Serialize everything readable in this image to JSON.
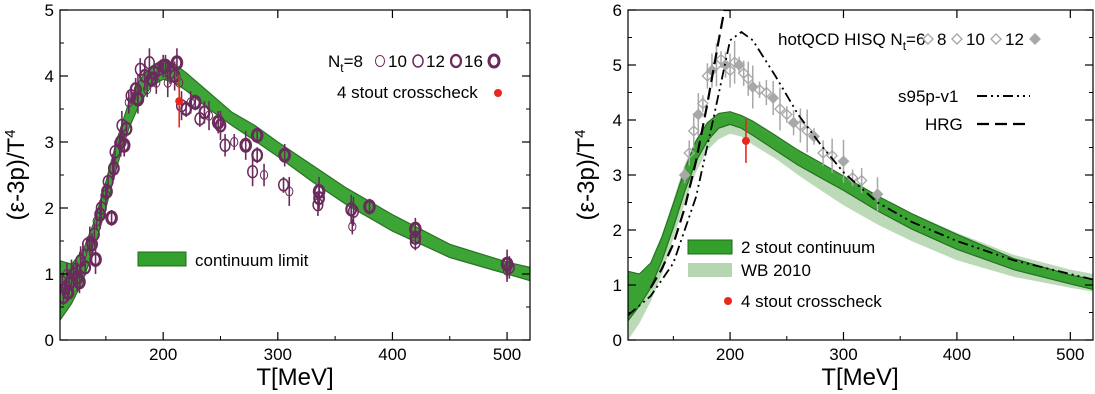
{
  "colors": {
    "band": "#33a02c",
    "band_dark": "#1f6b1a",
    "wb_band": "#b5d6b0",
    "lattice": "#6b2a5c",
    "crosscheck": "#e8281c",
    "hotqcd": "#a8a8a8"
  },
  "chart_data": [
    {
      "type": "line",
      "xlabel": "T[MeV]",
      "ylabel": "(ε-3p)/T",
      "ylabel_sup": "4",
      "xlim": [
        110,
        520
      ],
      "ylim": [
        0,
        5
      ],
      "xticks": [
        200,
        300,
        400,
        500
      ],
      "yticks": [
        0,
        1,
        2,
        3,
        4,
        5
      ],
      "legend_prefix": "N",
      "legend_prefix_sub": "t",
      "legend_prefix_suffix": "=8",
      "legend_labels": [
        "10",
        "12",
        "16"
      ],
      "series": [
        {
          "name": "continuum limit",
          "kind": "band",
          "x": [
            110,
            120,
            130,
            140,
            150,
            160,
            170,
            180,
            190,
            200,
            210,
            220,
            240,
            260,
            280,
            300,
            330,
            360,
            400,
            450,
            500,
            520
          ],
          "lower": [
            0.3,
            0.55,
            0.9,
            1.4,
            2.0,
            2.65,
            3.2,
            3.6,
            3.85,
            3.95,
            3.9,
            3.78,
            3.5,
            3.25,
            3.02,
            2.78,
            2.4,
            2.05,
            1.65,
            1.25,
            1.0,
            0.9
          ],
          "upper": [
            1.2,
            1.15,
            1.35,
            1.8,
            2.4,
            3.05,
            3.6,
            3.95,
            4.15,
            4.25,
            4.18,
            4.05,
            3.75,
            3.45,
            3.25,
            3.0,
            2.65,
            2.3,
            1.9,
            1.45,
            1.18,
            1.1
          ]
        },
        {
          "name": "8",
          "kind": "points",
          "style": "thin",
          "points": [
            [
              112,
              0.9
            ],
            [
              116,
              1.0
            ],
            [
              120,
              1.0
            ],
            [
              124,
              1.1
            ],
            [
              130,
              1.3
            ],
            [
              136,
              1.5
            ],
            [
              142,
              1.8
            ],
            [
              150,
              2.2
            ],
            [
              156,
              2.6
            ],
            [
              162,
              3.0
            ],
            [
              170,
              3.6
            ],
            [
              178,
              3.8
            ],
            [
              186,
              3.8
            ],
            [
              194,
              3.9
            ],
            [
              204,
              3.9
            ],
            [
              214,
              3.9
            ],
            [
              224,
              3.6
            ],
            [
              240,
              3.4
            ],
            [
              262,
              3.0
            ],
            [
              288,
              2.5
            ],
            [
              310,
              2.25
            ],
            [
              365,
              1.72
            ],
            [
              500,
              1.05
            ]
          ]
        },
        {
          "name": "10",
          "kind": "points",
          "style": "medium",
          "points": [
            [
              115,
              0.8
            ],
            [
              122,
              1.0
            ],
            [
              128,
              1.2
            ],
            [
              134,
              1.45
            ],
            [
              140,
              1.6
            ],
            [
              146,
              2.0
            ],
            [
              152,
              2.4
            ],
            [
              158,
              2.85
            ],
            [
              164,
              3.25
            ],
            [
              172,
              3.7
            ],
            [
              180,
              4.1
            ],
            [
              188,
              4.2
            ],
            [
              196,
              4.1
            ],
            [
              206,
              4.05
            ],
            [
              216,
              3.55
            ],
            [
              232,
              3.35
            ],
            [
              254,
              2.95
            ],
            [
              278,
              2.55
            ],
            [
              305,
              2.35
            ],
            [
              335,
              2.05
            ],
            [
              366,
              1.95
            ],
            [
              420,
              1.48
            ],
            [
              502,
              1.1
            ]
          ]
        },
        {
          "name": "12",
          "kind": "points",
          "style": "thick",
          "points": [
            [
              113,
              0.65
            ],
            [
              118,
              0.85
            ],
            [
              125,
              0.95
            ],
            [
              132,
              1.1
            ],
            [
              138,
              1.45
            ],
            [
              145,
              1.9
            ],
            [
              151,
              2.25
            ],
            [
              157,
              2.6
            ],
            [
              163,
              3.0
            ],
            [
              168,
              3.2
            ],
            [
              176,
              3.8
            ],
            [
              184,
              4.0
            ],
            [
              192,
              4.05
            ],
            [
              200,
              4.15
            ],
            [
              210,
              4.0
            ],
            [
              220,
              3.5
            ],
            [
              236,
              3.45
            ],
            [
              250,
              3.25
            ],
            [
              282,
              2.8
            ],
            [
              336,
              2.15
            ],
            [
              364,
              1.98
            ],
            [
              420,
              1.55
            ]
          ]
        },
        {
          "name": "16",
          "kind": "points",
          "style": "bold",
          "points": [
            [
              117,
              0.72
            ],
            [
              127,
              0.88
            ],
            [
              141,
              1.22
            ],
            [
              155,
              1.85
            ],
            [
              166,
              2.95
            ],
            [
              178,
              3.65
            ],
            [
              190,
              3.95
            ],
            [
              202,
              4.15
            ],
            [
              212,
              4.2
            ],
            [
              228,
              3.6
            ],
            [
              248,
              3.3
            ],
            [
              272,
              2.95
            ],
            [
              282,
              3.1
            ],
            [
              306,
              2.8
            ],
            [
              336,
              2.25
            ],
            [
              380,
              2.02
            ],
            [
              420,
              1.68
            ],
            [
              500,
              1.15
            ]
          ]
        },
        {
          "name": "4 stout crosscheck",
          "kind": "crosscheck",
          "points": [
            [
              214,
              3.62,
              0.4
            ]
          ]
        }
      ]
    },
    {
      "type": "line",
      "xlabel": "T[MeV]",
      "ylabel": "(ε-3p)/T",
      "ylabel_sup": "4",
      "xlim": [
        110,
        520
      ],
      "ylim": [
        0,
        6
      ],
      "xticks": [
        200,
        300,
        400,
        500
      ],
      "yticks": [
        0,
        1,
        2,
        3,
        4,
        5,
        6
      ],
      "hotqcd_prefix": "hotQCD HISQ N",
      "hotqcd_prefix_sub": "t",
      "hotqcd_prefix_suffix": "=6",
      "hotqcd_labels": [
        "8",
        "10",
        "12"
      ],
      "series": [
        {
          "name": "WB 2010",
          "kind": "band_light",
          "x": [
            110,
            120,
            130,
            140,
            150,
            160,
            170,
            180,
            190,
            200,
            210,
            220,
            240,
            260,
            280,
            300,
            330,
            360,
            400,
            450,
            500,
            520
          ],
          "lower": [
            0.0,
            0.3,
            0.7,
            1.2,
            1.85,
            2.5,
            3.05,
            3.45,
            3.65,
            3.75,
            3.7,
            3.55,
            3.3,
            3.0,
            2.72,
            2.45,
            2.1,
            1.8,
            1.45,
            1.15,
            0.95,
            0.88
          ],
          "upper": [
            0.9,
            1.1,
            1.4,
            1.9,
            2.55,
            3.2,
            3.65,
            3.95,
            4.05,
            4.08,
            4.0,
            3.9,
            3.65,
            3.4,
            3.15,
            2.9,
            2.6,
            2.3,
            1.95,
            1.55,
            1.28,
            1.2
          ]
        },
        {
          "name": "2 stout continuum",
          "kind": "band",
          "x": [
            110,
            120,
            130,
            140,
            150,
            160,
            170,
            180,
            190,
            200,
            210,
            220,
            240,
            260,
            280,
            300,
            330,
            360,
            400,
            450,
            500,
            520
          ],
          "lower": [
            0.35,
            0.62,
            0.95,
            1.45,
            2.05,
            2.7,
            3.25,
            3.62,
            3.85,
            3.92,
            3.85,
            3.72,
            3.45,
            3.18,
            2.95,
            2.72,
            2.35,
            2.02,
            1.65,
            1.28,
            1.02,
            0.92
          ],
          "upper": [
            1.25,
            1.2,
            1.4,
            1.88,
            2.48,
            3.1,
            3.62,
            3.95,
            4.12,
            4.15,
            4.08,
            3.98,
            3.72,
            3.45,
            3.22,
            2.98,
            2.62,
            2.3,
            1.92,
            1.48,
            1.18,
            1.1
          ]
        },
        {
          "name": "hotQCD",
          "kind": "hotqcd",
          "points": [
            [
              160,
              3.0
            ],
            [
              164,
              3.4
            ],
            [
              168,
              3.8
            ],
            [
              172,
              4.1
            ],
            [
              176,
              4.3
            ],
            [
              180,
              4.8
            ],
            [
              184,
              4.9
            ],
            [
              188,
              5.0
            ],
            [
              192,
              5.1
            ],
            [
              196,
              5.0
            ],
            [
              200,
              4.9
            ],
            [
              204,
              5.05
            ],
            [
              208,
              5.0
            ],
            [
              212,
              4.85
            ],
            [
              216,
              4.75
            ],
            [
              220,
              4.6
            ],
            [
              226,
              4.55
            ],
            [
              232,
              4.5
            ],
            [
              238,
              4.4
            ],
            [
              244,
              4.2
            ],
            [
              250,
              4.1
            ],
            [
              256,
              3.95
            ],
            [
              262,
              3.9
            ],
            [
              268,
              3.8
            ],
            [
              274,
              3.7
            ],
            [
              282,
              3.4
            ],
            [
              290,
              3.35
            ],
            [
              300,
              3.25
            ],
            [
              308,
              2.95
            ],
            [
              316,
              2.9
            ],
            [
              330,
              2.65
            ]
          ]
        },
        {
          "name": "s95p-v1",
          "kind": "dashdot",
          "x": [
            110,
            130,
            150,
            170,
            185,
            200,
            210,
            220,
            240,
            260,
            280,
            300,
            330,
            360,
            400,
            450,
            500,
            520
          ],
          "y": [
            0.45,
            0.8,
            1.4,
            2.6,
            4.0,
            5.45,
            5.6,
            5.45,
            4.8,
            4.1,
            3.55,
            3.05,
            2.5,
            2.15,
            1.8,
            1.45,
            1.2,
            1.1
          ]
        },
        {
          "name": "HRG",
          "kind": "dashed",
          "x": [
            130,
            140,
            150,
            160,
            170,
            180,
            190,
            195,
            200
          ],
          "y": [
            0.95,
            1.3,
            1.75,
            2.4,
            3.25,
            4.3,
            5.45,
            6.0,
            6.0
          ]
        },
        {
          "name": "4 stout crosscheck",
          "kind": "crosscheck",
          "points": [
            [
              214,
              3.62,
              0.4
            ]
          ]
        }
      ]
    }
  ]
}
